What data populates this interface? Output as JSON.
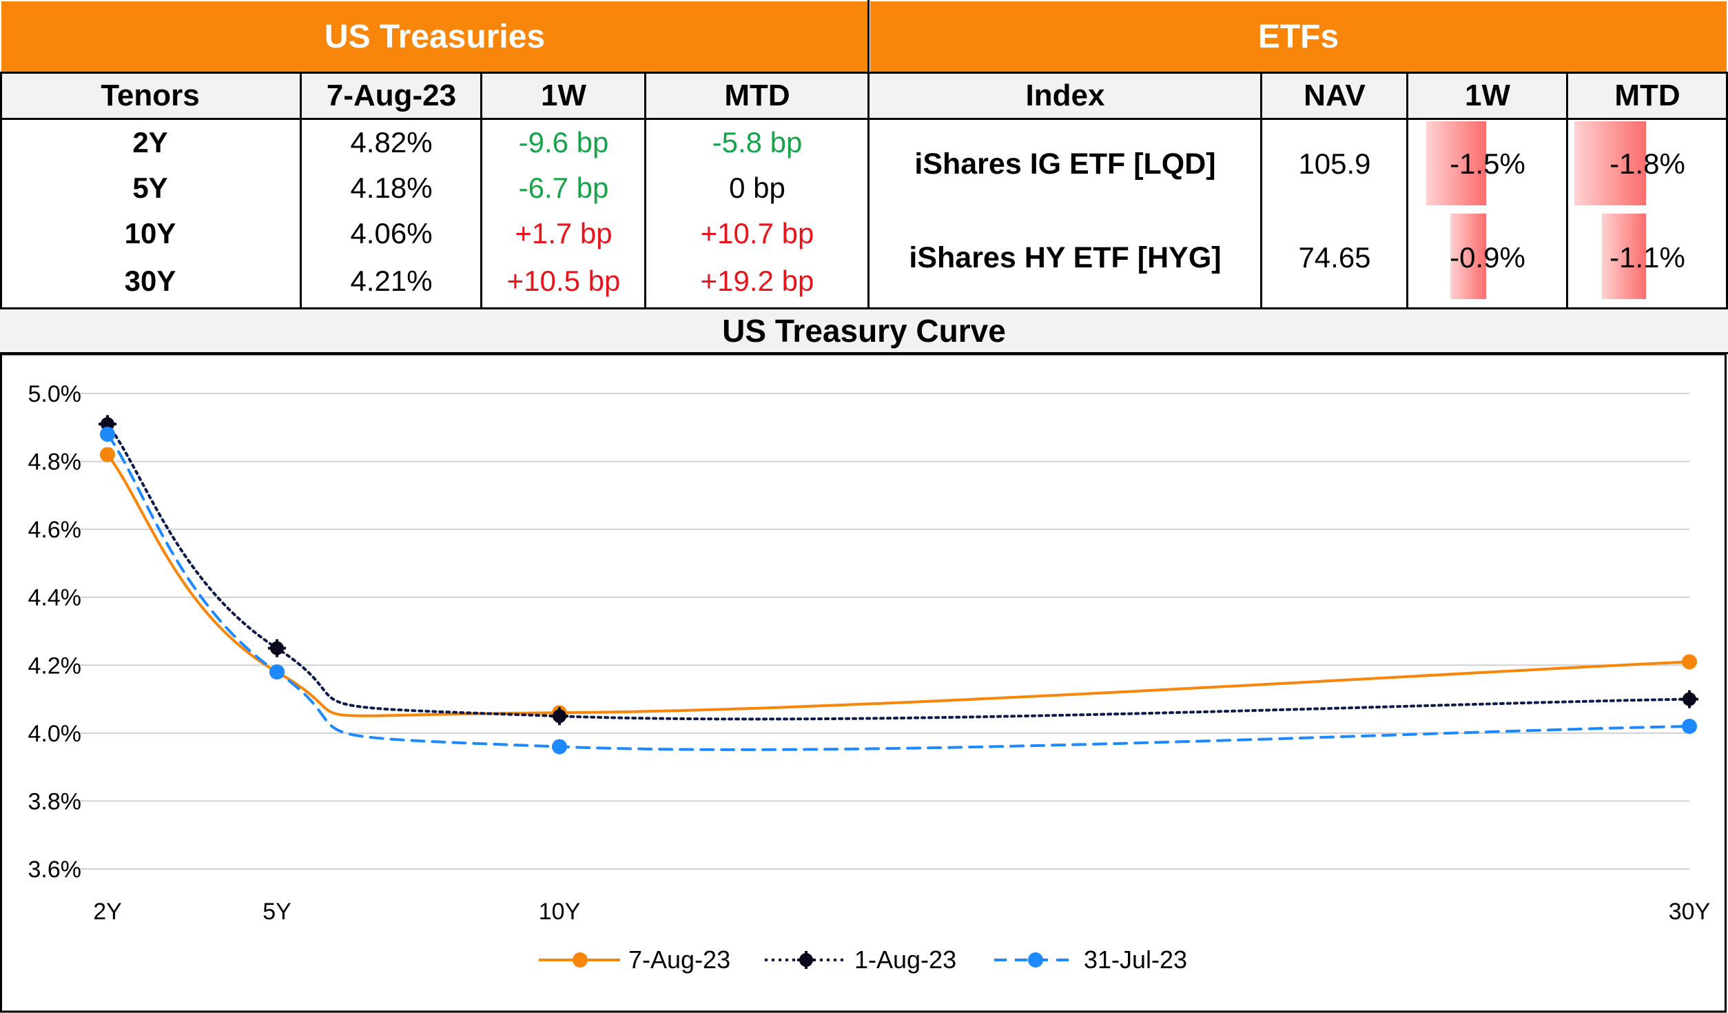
{
  "treasuries": {
    "title": "US Treasuries",
    "headers": [
      "Tenors",
      "7-Aug-23",
      "1W",
      "MTD"
    ],
    "rows": [
      {
        "tenor": "2Y",
        "yield": "4.82%",
        "w1": "-9.6 bp",
        "w1_dir": "neg",
        "mtd": "-5.8 bp",
        "mtd_dir": "neg"
      },
      {
        "tenor": "5Y",
        "yield": "4.18%",
        "w1": "-6.7 bp",
        "w1_dir": "neg",
        "mtd": "0 bp",
        "mtd_dir": "neu"
      },
      {
        "tenor": "10Y",
        "yield": "4.06%",
        "w1": "+1.7 bp",
        "w1_dir": "pos",
        "mtd": "+10.7 bp",
        "mtd_dir": "pos"
      },
      {
        "tenor": "30Y",
        "yield": "4.21%",
        "w1": "+10.5 bp",
        "w1_dir": "pos",
        "mtd": "+19.2 bp",
        "mtd_dir": "pos"
      }
    ]
  },
  "etfs": {
    "title": "ETFs",
    "headers": [
      "Index",
      "NAV",
      "1W",
      "MTD"
    ],
    "rows": [
      {
        "index": "iShares IG ETF [LQD]",
        "nav": "105.9",
        "w1": "-1.5%",
        "w1_value": -1.5,
        "mtd": "-1.8%",
        "mtd_value": -1.8
      },
      {
        "index": "iShares HY ETF [HYG]",
        "nav": "74.65",
        "w1": "-0.9%",
        "w1_value": -0.9,
        "mtd": "-1.1%",
        "mtd_value": -1.1
      }
    ]
  },
  "colors": {
    "header_orange": "#f7860a",
    "positive": "#e8141b",
    "negative": "#17a349",
    "series_7aug": "#f7860a",
    "series_1aug": "#0d1b4c",
    "series_31jul": "#1e88ff"
  },
  "chart_data": {
    "type": "line",
    "title": "US Treasury Curve",
    "x": [
      2,
      5,
      10,
      30
    ],
    "x_tick_labels": [
      "2Y",
      "5Y",
      "10Y",
      "30Y"
    ],
    "ylim": [
      3.6,
      5.0
    ],
    "y_ticks": [
      3.6,
      3.8,
      4.0,
      4.2,
      4.4,
      4.6,
      4.8,
      5.0
    ],
    "y_tick_labels": [
      "3.6%",
      "3.8%",
      "4.0%",
      "4.2%",
      "4.4%",
      "4.6%",
      "4.8%",
      "5.0%"
    ],
    "grid": true,
    "legend_position": "bottom",
    "series": [
      {
        "name": "7-Aug-23",
        "values": [
          4.82,
          4.18,
          4.06,
          4.21
        ],
        "style": "solid"
      },
      {
        "name": "1-Aug-23",
        "values": [
          4.91,
          4.25,
          4.05,
          4.1
        ],
        "style": "dotted"
      },
      {
        "name": "31-Jul-23",
        "values": [
          4.88,
          4.18,
          3.96,
          4.02
        ],
        "style": "dashed"
      }
    ]
  }
}
